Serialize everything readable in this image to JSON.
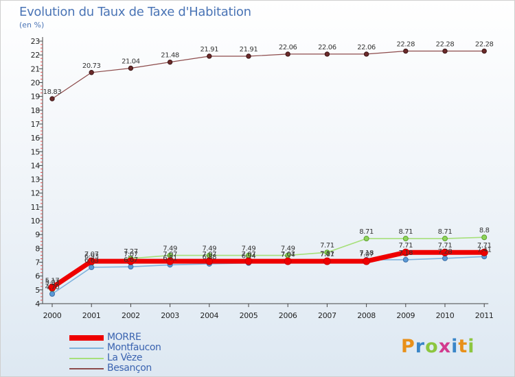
{
  "header": {
    "title": "Evolution du Taux de Taxe d'Habitation",
    "unit": "(en %)"
  },
  "logo": {
    "text": "Proxiti",
    "letter_colors": [
      "#e8901a",
      "#3a86c8",
      "#8cc63f",
      "#d23a8e",
      "#3a86c8",
      "#e8901a",
      "#8cc63f"
    ]
  },
  "chart_data": {
    "type": "line",
    "title": "Evolution du Taux de Taxe d'Habitation",
    "ylabel": "(en %)",
    "xlabel": "",
    "ylim": [
      4,
      23
    ],
    "yticks": [
      4,
      5,
      6,
      7,
      8,
      9,
      10,
      11,
      12,
      13,
      14,
      15,
      16,
      17,
      18,
      19,
      20,
      21,
      22,
      23
    ],
    "categories": [
      "2000",
      "2001",
      "2002",
      "2003",
      "2004",
      "2005",
      "2006",
      "2007",
      "2008",
      "2009",
      "2010",
      "2011"
    ],
    "grid": false,
    "legend_position": "bottom-left",
    "series": [
      {
        "name": "MORRE",
        "color": "#ee0000",
        "values": [
          5.17,
          7.07,
          7.07,
          7.07,
          7.07,
          7.07,
          7.07,
          7.07,
          7.07,
          7.71,
          7.71,
          7.71
        ],
        "labels": [
          "5.17",
          "7.07",
          "7.07",
          "7.07",
          "7.07",
          "7.07",
          "7.07",
          "7.07",
          "7.07",
          "7.71",
          "7.71",
          "7.71"
        ]
      },
      {
        "name": "Montfaucon",
        "color": "#7fb2dd",
        "values": [
          4.7,
          6.63,
          6.67,
          6.81,
          6.88,
          6.94,
          7.04,
          7.11,
          7.18,
          7.18,
          7.28,
          7.41
        ],
        "labels": [
          "4.70",
          "6.63",
          "6.67",
          "6.81",
          "6.88",
          "6.94",
          "7.04",
          "7.11",
          "7.18",
          "7.18",
          "7.28",
          "7.41"
        ]
      },
      {
        "name": "La Vèze",
        "color": "#a6e07a",
        "values": [
          5.03,
          6.93,
          7.27,
          7.49,
          7.49,
          7.49,
          7.49,
          7.71,
          8.71,
          8.71,
          8.71,
          8.8
        ],
        "labels": [
          "5.03",
          "6.93",
          "7.27",
          "7.49",
          "7.49",
          "7.49",
          "7.49",
          "7.71",
          "8.71",
          "8.71",
          "8.71",
          "8.8"
        ]
      },
      {
        "name": "Besançon",
        "color": "#8c4a4a",
        "values": [
          18.83,
          20.73,
          21.04,
          21.48,
          21.91,
          21.91,
          22.06,
          22.06,
          22.06,
          22.28,
          22.28,
          22.28
        ],
        "labels": [
          "18.83",
          "20.73",
          "21.04",
          "21.48",
          "21.91",
          "21.91",
          "22.06",
          "22.06",
          "22.06",
          "22.28",
          "22.28",
          "22.28"
        ]
      }
    ]
  }
}
